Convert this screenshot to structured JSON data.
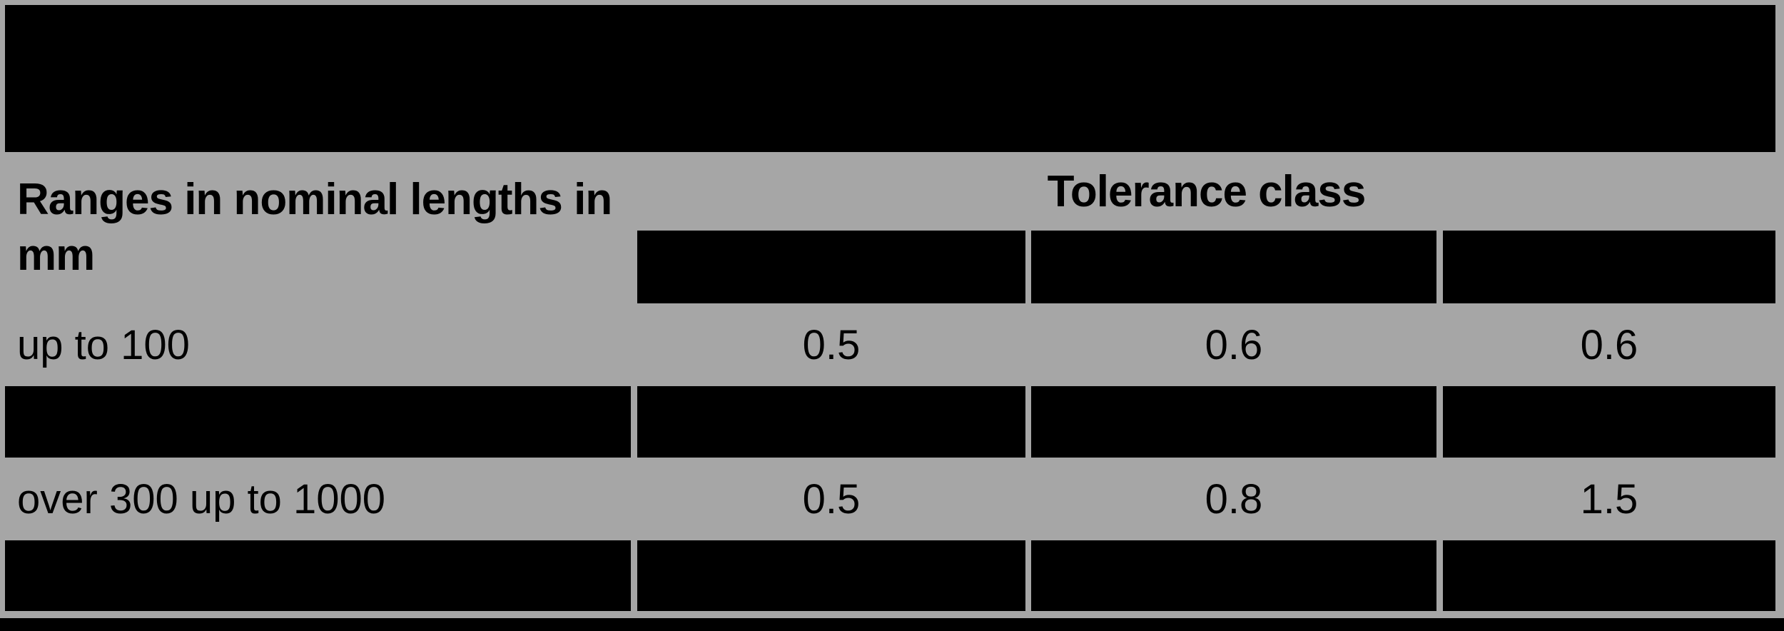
{
  "colors": {
    "background": "#a6a6a6",
    "redaction": "#000000",
    "text": "#000000"
  },
  "table": {
    "range_header": "Ranges in nominal lengths in mm",
    "tolerance_header": "Tolerance class",
    "rows": [
      {
        "label": "up to 100",
        "values": [
          "0.5",
          "0.6",
          "0.6"
        ]
      },
      {
        "label": "over 300 up to 1000",
        "values": [
          "0.5",
          "0.8",
          "1.5"
        ]
      }
    ]
  }
}
